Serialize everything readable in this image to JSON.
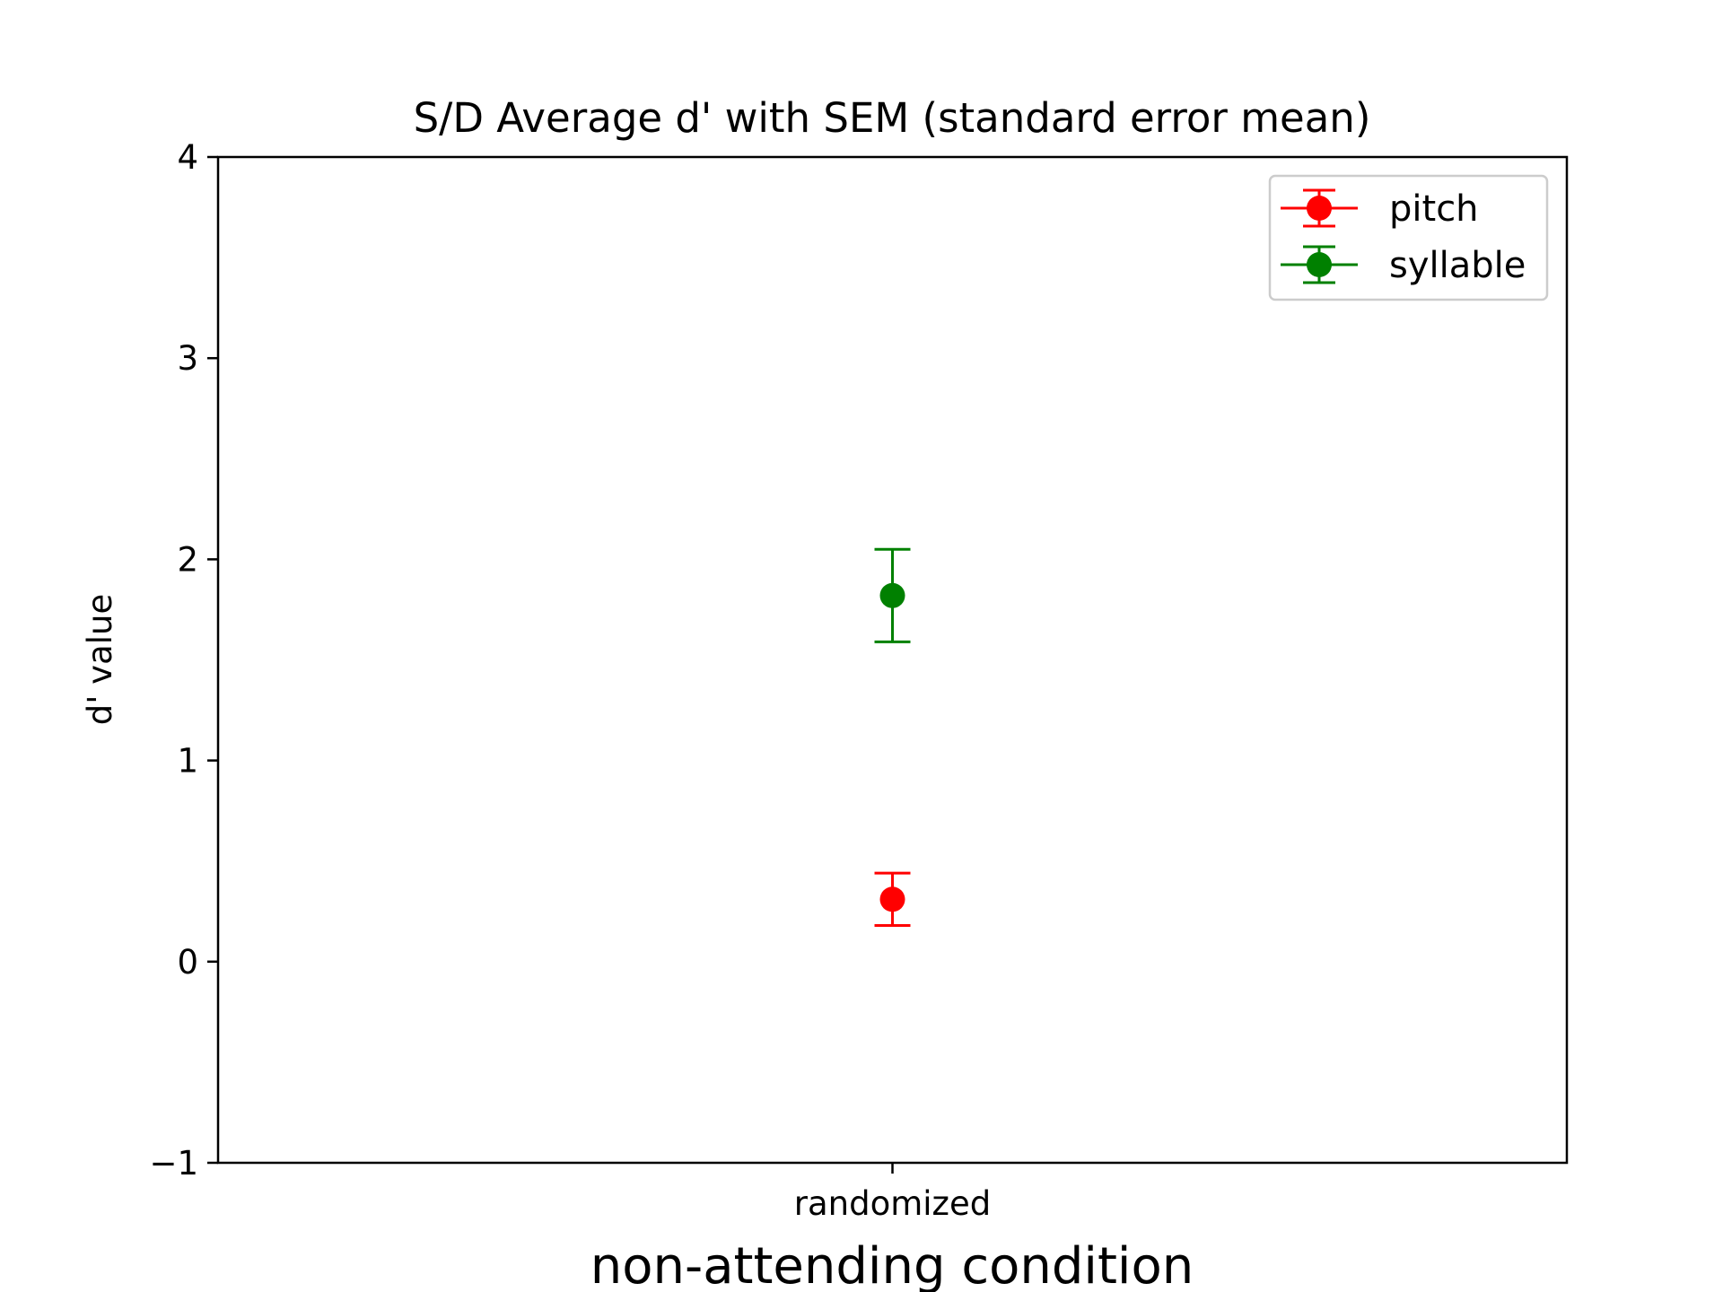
{
  "chart_data": {
    "type": "scatter",
    "title": "S/D Average d' with SEM (standard error mean)",
    "xlabel": "non-attending condition",
    "ylabel": "d' value",
    "categories": [
      "randomized"
    ],
    "ylim": [
      -1,
      4
    ],
    "yticks": [
      -1,
      0,
      1,
      2,
      3,
      4
    ],
    "ytick_labels": [
      "−1",
      "0",
      "1",
      "2",
      "3",
      "4"
    ],
    "grid": false,
    "legend_position": "top-right",
    "series": [
      {
        "name": "pitch",
        "color": "#ff0000",
        "values": [
          0.31
        ],
        "errors": [
          0.13
        ]
      },
      {
        "name": "syllable",
        "color": "#008000",
        "values": [
          1.82
        ],
        "errors": [
          0.23
        ]
      }
    ]
  }
}
